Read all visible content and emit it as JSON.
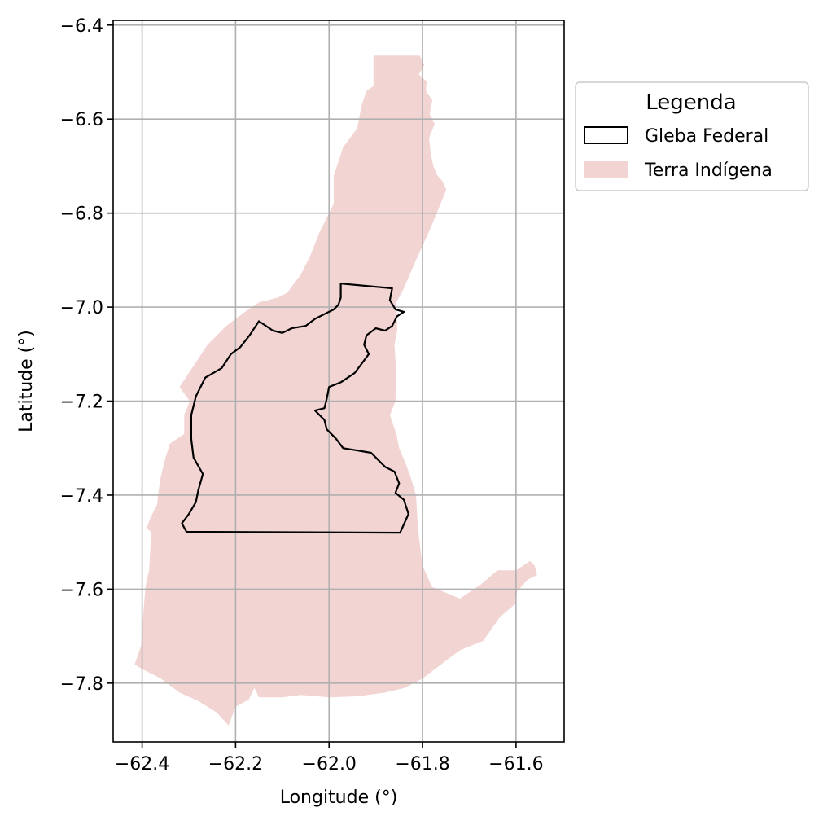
{
  "chart_data": {
    "type": "map",
    "xlabel": "Longitude (°)",
    "ylabel": "Latitude (°)",
    "xlim": [
      -62.462,
      -61.497
    ],
    "ylim": [
      -7.925,
      -6.39
    ],
    "x_ticks": [
      -62.4,
      -62.2,
      -62.0,
      -61.8,
      -61.6
    ],
    "x_tick_labels": [
      "−62.4",
      "−62.2",
      "−62.0",
      "−61.8",
      "−61.6"
    ],
    "y_ticks": [
      -6.4,
      -6.6,
      -6.8,
      -7.0,
      -7.2,
      -7.4,
      -7.6,
      -7.8
    ],
    "y_tick_labels": [
      "−6.4",
      "−6.6",
      "−6.8",
      "−7.0",
      "−7.2",
      "−7.4",
      "−7.6",
      "−7.8"
    ],
    "grid": true,
    "legend": {
      "title": "Legenda",
      "position": "outside-right-top",
      "items": [
        {
          "label": "Gleba Federal",
          "style": "outline",
          "color": "#000000"
        },
        {
          "label": "Terra Indígena",
          "style": "fill",
          "color": "#f2d4d3"
        }
      ]
    },
    "layers": [
      {
        "name": "Terra Indígena",
        "fill": "#f2d4d3",
        "polygon": [
          [
            -61.905,
            -6.465
          ],
          [
            -61.806,
            -6.465
          ],
          [
            -61.796,
            -6.485
          ],
          [
            -61.808,
            -6.505
          ],
          [
            -61.791,
            -6.52
          ],
          [
            -61.793,
            -6.54
          ],
          [
            -61.779,
            -6.56
          ],
          [
            -61.785,
            -6.59
          ],
          [
            -61.774,
            -6.61
          ],
          [
            -61.786,
            -6.64
          ],
          [
            -61.783,
            -6.67
          ],
          [
            -61.777,
            -6.7
          ],
          [
            -61.768,
            -6.72
          ],
          [
            -61.759,
            -6.73
          ],
          [
            -61.749,
            -6.75
          ],
          [
            -61.782,
            -6.83
          ],
          [
            -61.814,
            -6.9
          ],
          [
            -61.84,
            -6.96
          ],
          [
            -61.856,
            -6.99
          ],
          [
            -61.854,
            -7.05
          ],
          [
            -61.86,
            -7.08
          ],
          [
            -61.857,
            -7.13
          ],
          [
            -61.858,
            -7.2
          ],
          [
            -61.87,
            -7.23
          ],
          [
            -61.856,
            -7.27
          ],
          [
            -61.85,
            -7.3
          ],
          [
            -61.837,
            -7.33
          ],
          [
            -61.826,
            -7.36
          ],
          [
            -61.814,
            -7.4
          ],
          [
            -61.81,
            -7.47
          ],
          [
            -61.8,
            -7.55
          ],
          [
            -61.78,
            -7.595
          ],
          [
            -61.72,
            -7.62
          ],
          [
            -61.675,
            -7.59
          ],
          [
            -61.64,
            -7.56
          ],
          [
            -61.6,
            -7.56
          ],
          [
            -61.57,
            -7.54
          ],
          [
            -61.56,
            -7.55
          ],
          [
            -61.555,
            -7.57
          ],
          [
            -61.575,
            -7.58
          ],
          [
            -61.598,
            -7.605
          ],
          [
            -61.6,
            -7.63
          ],
          [
            -61.635,
            -7.66
          ],
          [
            -61.67,
            -7.71
          ],
          [
            -61.72,
            -7.73
          ],
          [
            -61.76,
            -7.76
          ],
          [
            -61.8,
            -7.79
          ],
          [
            -61.838,
            -7.81
          ],
          [
            -61.88,
            -7.82
          ],
          [
            -61.94,
            -7.828
          ],
          [
            -62.0,
            -7.83
          ],
          [
            -62.06,
            -7.825
          ],
          [
            -62.1,
            -7.83
          ],
          [
            -62.15,
            -7.83
          ],
          [
            -62.16,
            -7.81
          ],
          [
            -62.172,
            -7.835
          ],
          [
            -62.2,
            -7.85
          ],
          [
            -62.215,
            -7.89
          ],
          [
            -62.241,
            -7.862
          ],
          [
            -62.28,
            -7.838
          ],
          [
            -62.32,
            -7.82
          ],
          [
            -62.36,
            -7.79
          ],
          [
            -62.4,
            -7.77
          ],
          [
            -62.416,
            -7.76
          ],
          [
            -62.402,
            -7.72
          ],
          [
            -62.398,
            -7.66
          ],
          [
            -62.395,
            -7.62
          ],
          [
            -62.392,
            -7.59
          ],
          [
            -62.385,
            -7.56
          ],
          [
            -62.383,
            -7.52
          ],
          [
            -62.38,
            -7.48
          ],
          [
            -62.39,
            -7.47
          ],
          [
            -62.383,
            -7.45
          ],
          [
            -62.368,
            -7.42
          ],
          [
            -62.366,
            -7.4
          ],
          [
            -62.36,
            -7.36
          ],
          [
            -62.35,
            -7.32
          ],
          [
            -62.34,
            -7.29
          ],
          [
            -62.31,
            -7.27
          ],
          [
            -62.31,
            -7.23
          ],
          [
            -62.298,
            -7.2
          ],
          [
            -62.32,
            -7.17
          ],
          [
            -62.3,
            -7.14
          ],
          [
            -62.28,
            -7.11
          ],
          [
            -62.26,
            -7.08
          ],
          [
            -62.22,
            -7.04
          ],
          [
            -62.18,
            -7.01
          ],
          [
            -62.15,
            -6.99
          ],
          [
            -62.11,
            -6.98
          ],
          [
            -62.09,
            -6.97
          ],
          [
            -62.06,
            -6.93
          ],
          [
            -62.04,
            -6.89
          ],
          [
            -62.02,
            -6.84
          ],
          [
            -62.0,
            -6.8
          ],
          [
            -61.99,
            -6.78
          ],
          [
            -61.99,
            -6.72
          ],
          [
            -61.97,
            -6.66
          ],
          [
            -61.94,
            -6.62
          ],
          [
            -61.93,
            -6.57
          ],
          [
            -61.92,
            -6.54
          ],
          [
            -61.905,
            -6.53
          ]
        ]
      },
      {
        "name": "Gleba Federal",
        "stroke": "#000000",
        "polygon": [
          [
            -61.975,
            -6.95
          ],
          [
            -61.865,
            -6.96
          ],
          [
            -61.87,
            -6.985
          ],
          [
            -61.858,
            -7.005
          ],
          [
            -61.84,
            -7.01
          ],
          [
            -61.855,
            -7.02
          ],
          [
            -61.865,
            -7.04
          ],
          [
            -61.88,
            -7.05
          ],
          [
            -61.9,
            -7.045
          ],
          [
            -61.92,
            -7.06
          ],
          [
            -61.925,
            -7.08
          ],
          [
            -61.915,
            -7.1
          ],
          [
            -61.93,
            -7.12
          ],
          [
            -61.945,
            -7.14
          ],
          [
            -61.96,
            -7.15
          ],
          [
            -61.975,
            -7.16
          ],
          [
            -62.0,
            -7.17
          ],
          [
            -62.005,
            -7.195
          ],
          [
            -62.01,
            -7.215
          ],
          [
            -62.03,
            -7.22
          ],
          [
            -62.01,
            -7.24
          ],
          [
            -62.005,
            -7.26
          ],
          [
            -61.985,
            -7.28
          ],
          [
            -61.97,
            -7.3
          ],
          [
            -61.94,
            -7.305
          ],
          [
            -61.91,
            -7.31
          ],
          [
            -61.895,
            -7.325
          ],
          [
            -61.88,
            -7.34
          ],
          [
            -61.86,
            -7.35
          ],
          [
            -61.85,
            -7.375
          ],
          [
            -61.858,
            -7.395
          ],
          [
            -61.84,
            -7.41
          ],
          [
            -61.83,
            -7.44
          ],
          [
            -61.848,
            -7.48
          ],
          [
            -62.305,
            -7.478
          ],
          [
            -62.315,
            -7.46
          ],
          [
            -62.3,
            -7.44
          ],
          [
            -62.285,
            -7.415
          ],
          [
            -62.28,
            -7.39
          ],
          [
            -62.27,
            -7.355
          ],
          [
            -62.29,
            -7.32
          ],
          [
            -62.295,
            -7.28
          ],
          [
            -62.295,
            -7.23
          ],
          [
            -62.285,
            -7.19
          ],
          [
            -62.265,
            -7.15
          ],
          [
            -62.23,
            -7.13
          ],
          [
            -62.21,
            -7.1
          ],
          [
            -62.19,
            -7.085
          ],
          [
            -62.17,
            -7.06
          ],
          [
            -62.15,
            -7.03
          ],
          [
            -62.12,
            -7.05
          ],
          [
            -62.1,
            -7.055
          ],
          [
            -62.08,
            -7.045
          ],
          [
            -62.05,
            -7.04
          ],
          [
            -62.03,
            -7.025
          ],
          [
            -62.01,
            -7.015
          ],
          [
            -61.99,
            -7.005
          ],
          [
            -61.98,
            -6.995
          ],
          [
            -61.975,
            -6.98
          ]
        ]
      }
    ]
  }
}
